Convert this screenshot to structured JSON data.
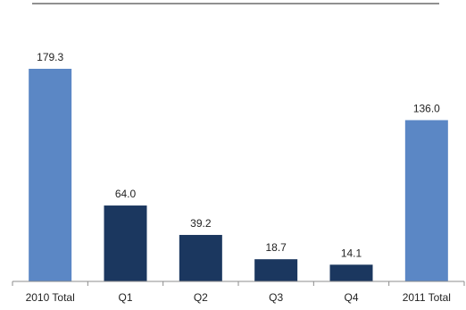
{
  "chart_data": {
    "type": "bar",
    "categories": [
      "2010 Total",
      "Q1",
      "Q2",
      "Q3",
      "Q4",
      "2011 Total"
    ],
    "values": [
      179.3,
      64.0,
      39.2,
      18.7,
      14.1,
      136.0
    ],
    "value_labels": [
      "179.3",
      "64.0",
      "39.2",
      "18.7",
      "14.1",
      "136.0"
    ],
    "bar_colors": [
      "#5b87c5",
      "#1b375f",
      "#1b375f",
      "#1b375f",
      "#1b375f",
      "#5b87c5"
    ],
    "ylim": [
      0,
      200
    ],
    "grid": false,
    "legend": "none"
  }
}
